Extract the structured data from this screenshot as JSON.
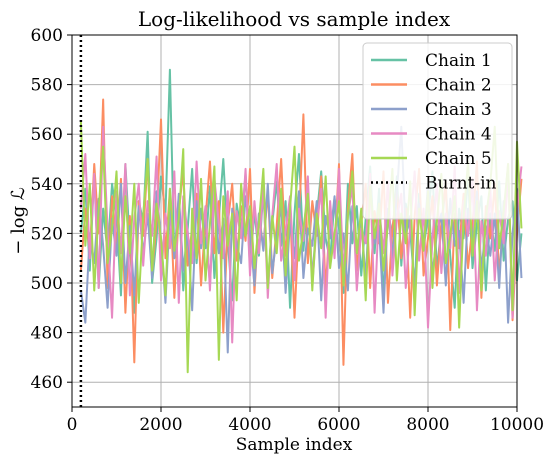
{
  "chart_data": {
    "type": "line",
    "title": "Log-likelihood vs sample index",
    "xlabel": "Sample index",
    "ylabel": "− log ℒ",
    "xlim": [
      0,
      10000
    ],
    "ylim": [
      450,
      600
    ],
    "x_ticks": [
      0,
      2000,
      4000,
      6000,
      8000,
      10000
    ],
    "y_ticks": [
      460,
      480,
      500,
      520,
      540,
      560,
      580,
      600
    ],
    "grid": true,
    "legend_position": "top-right",
    "burn_in": {
      "name": "Burnt-in",
      "x": 200,
      "color": "#000000",
      "style": "dotted"
    },
    "sample_step": 100,
    "series": [
      {
        "name": "Chain 1",
        "color": "#66c2a5",
        "values": [
          520,
          538,
          505,
          545,
          498,
          530,
          512,
          540,
          527,
          495,
          548,
          515,
          488,
          533,
          525,
          561,
          500,
          518,
          543,
          528,
          586,
          510,
          535,
          497,
          522,
          546,
          508,
          530,
          514,
          539,
          502,
          526,
          550,
          517,
          493,
          532,
          521,
          544,
          506,
          529,
          511,
          537,
          499,
          524,
          541,
          515,
          533,
          490,
          528,
          552,
          513,
          536,
          501,
          527,
          545,
          518,
          509,
          534,
          522,
          496,
          540,
          516,
          531,
          503,
          526,
          547,
          512,
          538,
          494,
          529,
          519,
          543,
          507,
          532,
          521,
          498,
          536,
          514,
          527,
          545,
          505,
          523,
          539,
          511,
          490,
          530,
          518,
          543,
          506,
          524,
          535,
          497,
          528,
          513,
          541,
          509,
          526,
          533,
          501,
          520
        ]
      },
      {
        "name": "Chain 2",
        "color": "#fc8d62",
        "values": [
          505,
          530,
          512,
          548,
          520,
          574,
          498,
          535,
          515,
          542,
          488,
          527,
          468,
          533,
          519,
          550,
          503,
          525,
          566,
          510,
          538,
          494,
          529,
          545,
          507,
          522,
          536,
          499,
          526,
          549,
          512,
          533,
          480,
          524,
          540,
          509,
          531,
          517,
          546,
          496,
          528,
          514,
          537,
          502,
          523,
          550,
          511,
          530,
          486,
          524,
          568,
          508,
          533,
          519,
          543,
          497,
          527,
          515,
          548,
          467,
          530,
          552,
          505,
          524,
          540,
          498,
          529,
          516,
          545,
          492,
          522,
          537,
          510,
          530,
          486,
          527,
          546,
          503,
          518,
          535,
          499,
          524,
          541,
          481,
          528,
          514,
          536,
          506,
          523,
          549,
          494,
          531,
          518,
          540,
          503,
          527,
          548,
          485,
          520,
          542
        ]
      },
      {
        "name": "Chain 3",
        "color": "#8da0cb",
        "values": [
          497,
          484,
          520,
          508,
          534,
          515,
          490,
          526,
          511,
          540,
          500,
          523,
          495,
          531,
          512,
          528,
          502,
          537,
          518,
          492,
          529,
          510,
          536,
          505,
          521,
          489,
          533,
          514,
          527,
          499,
          538,
          512,
          526,
          472,
          530,
          516,
          508,
          535,
          521,
          499,
          528,
          513,
          540,
          504,
          519,
          531,
          496,
          525,
          510,
          537,
          502,
          522,
          515,
          533,
          493,
          527,
          518,
          535,
          506,
          520,
          497,
          531,
          512,
          526,
          501,
          539,
          516,
          523,
          488,
          530,
          510,
          536,
          563,
          519,
          527,
          495,
          532,
          514,
          540,
          503,
          520,
          528,
          499,
          534,
          515,
          521,
          492,
          530,
          517,
          537,
          505,
          523,
          511,
          528,
          498,
          533,
          484,
          520,
          538,
          502
        ]
      },
      {
        "name": "Chain 4",
        "color": "#e78ac3",
        "values": [
          530,
          552,
          510,
          544,
          498,
          563,
          521,
          486,
          537,
          512,
          548,
          495,
          526,
          540,
          507,
          533,
          519,
          551,
          501,
          528,
          514,
          545,
          492,
          535,
          520,
          508,
          549,
          516,
          531,
          497,
          542,
          524,
          510,
          537,
          476,
          529,
          518,
          546,
          503,
          533,
          512,
          540,
          494,
          527,
          548,
          509,
          521,
          535,
          501,
          530,
          517,
          543,
          499,
          524,
          538,
          486,
          533,
          510,
          546,
          505,
          527,
          539,
          497,
          522,
          516,
          544,
          488,
          531,
          512,
          541,
          503,
          526,
          536,
          498,
          523,
          545,
          509,
          530,
          482,
          518,
          540,
          504,
          528,
          514,
          547,
          496,
          533,
          519,
          542,
          489,
          525,
          511,
          538,
          501,
          529,
          516,
          544,
          486,
          530,
          547
        ]
      },
      {
        "name": "Chain 5",
        "color": "#a6d854",
        "values": [
          565,
          515,
          540,
          497,
          530,
          555,
          508,
          522,
          545,
          500,
          535,
          512,
          540,
          492,
          527,
          550,
          505,
          532,
          518,
          495,
          538,
          513,
          526,
          554,
          464,
          530,
          510,
          542,
          501,
          524,
          547,
          469,
          535,
          515,
          528,
          493,
          540,
          519,
          531,
          506,
          524,
          546,
          498,
          527,
          512,
          538,
          503,
          530,
          555,
          509,
          522,
          536,
          497,
          528,
          514,
          543,
          506,
          520,
          533,
          499,
          527,
          545,
          512,
          530,
          493,
          539,
          518,
          532,
          505,
          524,
          546,
          501,
          528,
          516,
          541,
          487,
          530,
          513,
          537,
          498,
          525,
          544,
          508,
          519,
          535,
          482,
          527,
          549,
          511,
          533,
          497,
          526,
          540,
          563,
          514,
          529,
          548,
          489,
          557,
          522
        ]
      }
    ]
  }
}
